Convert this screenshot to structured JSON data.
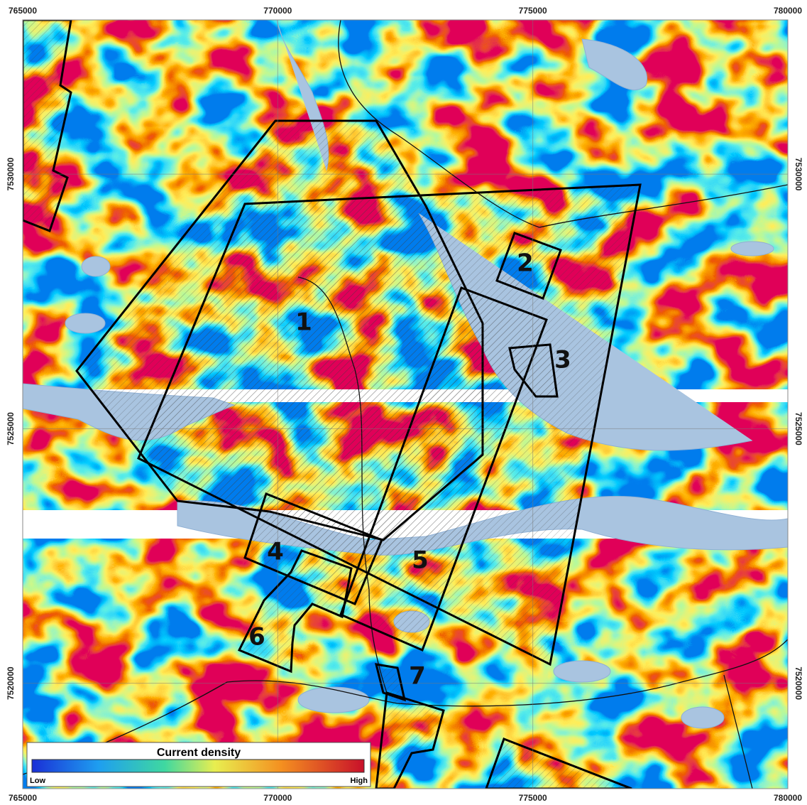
{
  "map": {
    "xlim": [
      765000,
      780000
    ],
    "ylim": [
      7517930,
      7533030
    ],
    "xticks": [
      765000,
      770000,
      775000,
      780000
    ],
    "yticks": [
      7520000,
      7525000,
      7530000
    ],
    "areas": [
      {
        "label": "1"
      },
      {
        "label": "2"
      },
      {
        "label": "3"
      },
      {
        "label": "4"
      },
      {
        "label": "5"
      },
      {
        "label": "6"
      },
      {
        "label": "7"
      }
    ],
    "legend": {
      "title": "Current density",
      "low": "Low",
      "high": "High"
    }
  }
}
